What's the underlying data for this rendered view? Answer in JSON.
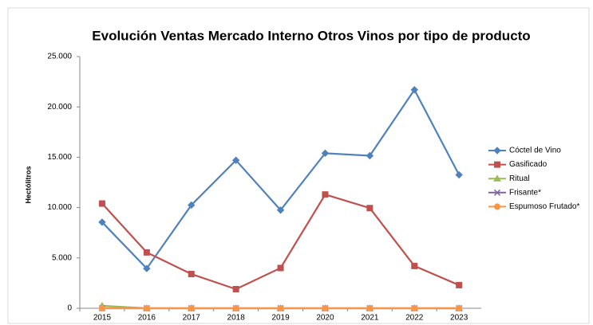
{
  "chart_data": {
    "type": "line",
    "title": "Evolución Ventas Mercado Interno Otros Vinos por tipo de producto",
    "y_label": "Hectólitros",
    "categories": [
      "2015",
      "2016",
      "2017",
      "2018",
      "2019",
      "2020",
      "2021",
      "2022",
      "2023"
    ],
    "series": [
      {
        "name": "Cóctel de Vino",
        "color": "#4f81bd",
        "marker": "diamond",
        "values": [
          8550,
          3950,
          10250,
          14700,
          9750,
          15400,
          15150,
          21700,
          13250
        ]
      },
      {
        "name": "Gasificado",
        "color": "#c0504d",
        "marker": "square",
        "values": [
          10400,
          5550,
          3400,
          1900,
          4000,
          11300,
          9950,
          4200,
          2300
        ]
      },
      {
        "name": "Ritual",
        "color": "#9bbb59",
        "marker": "triangle",
        "values": [
          250,
          0,
          0,
          0,
          0,
          0,
          0,
          0,
          0
        ]
      },
      {
        "name": "Frisante*",
        "color": "#8064a2",
        "marker": "x",
        "values": [
          0,
          0,
          0,
          0,
          0,
          0,
          0,
          0,
          0
        ]
      },
      {
        "name": "Espumoso Frutado*",
        "color": "#f79646",
        "marker": "circle",
        "values": [
          0,
          0,
          0,
          0,
          0,
          0,
          0,
          0,
          0
        ]
      }
    ],
    "ylim": [
      0,
      25000
    ],
    "yticks": [
      0,
      {
        "value": 5000,
        "label": "5.000"
      },
      {
        "value": 10000,
        "label": "10.000"
      },
      {
        "value": 15000,
        "label": "15.000"
      },
      {
        "value": 20000,
        "label": "20.000"
      },
      {
        "value": 25000,
        "label": "25.000"
      }
    ],
    "legend": "right"
  }
}
